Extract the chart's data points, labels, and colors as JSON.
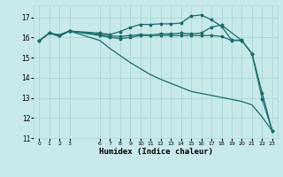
{
  "xlabel": "Humidex (Indice chaleur)",
  "bg_color": "#c8eaea",
  "grid_color": "#b0d8d8",
  "line_color": "#1a6b6b",
  "xlim": [
    -0.5,
    23.5
  ],
  "ylim": [
    11,
    17.6
  ],
  "yticks": [
    11,
    12,
    13,
    14,
    15,
    16,
    17
  ],
  "xticks": [
    0,
    1,
    2,
    3,
    6,
    7,
    8,
    9,
    10,
    11,
    12,
    13,
    14,
    15,
    16,
    17,
    18,
    19,
    20,
    21,
    22,
    23
  ],
  "line1_x": [
    0,
    1,
    2,
    3,
    6,
    7,
    8,
    9,
    10,
    11,
    12,
    13,
    14,
    15,
    16,
    17,
    18,
    19,
    20
  ],
  "line1_y": [
    15.82,
    16.22,
    16.12,
    16.32,
    16.22,
    16.15,
    16.3,
    16.5,
    16.65,
    16.65,
    16.68,
    16.68,
    16.72,
    17.07,
    17.12,
    16.88,
    16.55,
    15.87,
    15.87
  ],
  "line2_x": [
    0,
    1,
    2,
    3,
    6,
    7,
    8,
    9,
    10,
    11,
    12,
    13,
    14,
    15,
    16,
    17,
    18,
    19,
    20,
    21,
    22,
    23
  ],
  "line2_y": [
    15.82,
    16.22,
    16.12,
    16.32,
    16.1,
    16.0,
    15.95,
    16.0,
    16.1,
    16.1,
    16.1,
    16.1,
    16.1,
    16.1,
    16.1,
    16.1,
    16.05,
    15.85,
    15.85,
    15.2,
    13.25,
    11.35
  ],
  "line3_x": [
    0,
    1,
    2,
    3,
    6,
    7,
    8,
    9,
    10,
    11,
    12,
    13,
    14,
    15,
    16,
    17,
    18,
    20,
    21,
    22,
    23
  ],
  "line3_y": [
    15.82,
    16.22,
    16.12,
    16.32,
    16.15,
    16.08,
    16.05,
    16.1,
    16.15,
    16.12,
    16.18,
    16.18,
    16.22,
    16.18,
    16.22,
    16.52,
    16.62,
    15.85,
    15.2,
    12.95,
    11.35
  ],
  "line4_x": [
    0,
    1,
    2,
    3,
    6,
    7,
    8,
    9,
    10,
    11,
    12,
    13,
    14,
    15,
    16,
    17,
    18,
    19,
    20,
    21,
    22,
    23
  ],
  "line4_y": [
    15.82,
    16.22,
    16.05,
    16.32,
    15.85,
    15.45,
    15.1,
    14.75,
    14.45,
    14.15,
    13.92,
    13.72,
    13.52,
    13.32,
    13.22,
    13.12,
    13.02,
    12.92,
    12.82,
    12.65,
    12.05,
    11.35
  ]
}
